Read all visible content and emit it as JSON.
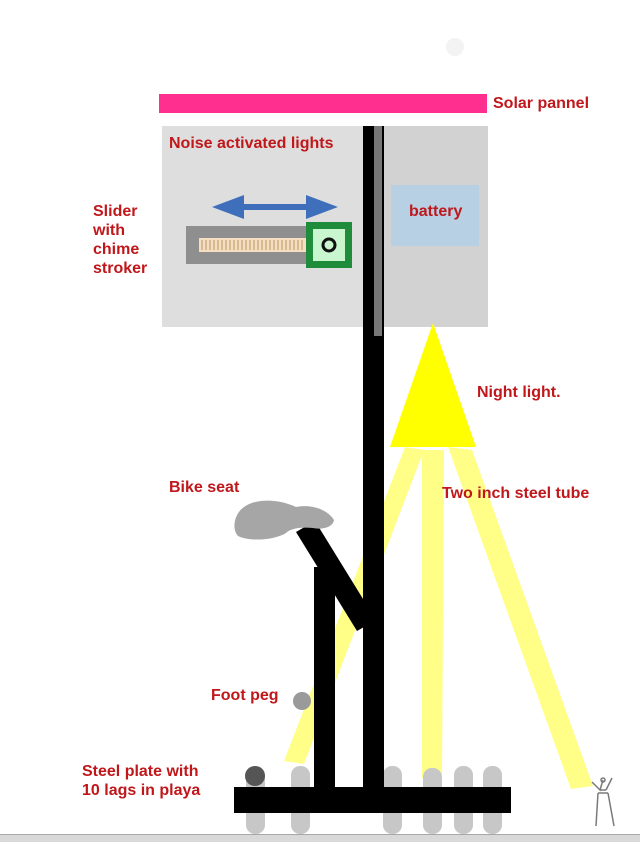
{
  "labels": {
    "solar_panel": "Solar pannel",
    "noise_lights": "Noise activated lights",
    "slider": "Slider\nwith\nchime\nstroker",
    "battery": "battery",
    "night_light": "Night light.",
    "bike_seat": "Bike seat",
    "steel_tube": "Two inch steel tube",
    "foot_peg": "Foot peg",
    "steel_plate": "Steel plate with\n10 lags in playa"
  },
  "colors": {
    "label_text": "#c0171b",
    "solar_panel": "#ff2f8f",
    "enclosure": "#dedede",
    "battery": "#b7d0e3",
    "arrow": "#3f6fba",
    "light_cone": "#ffff00",
    "light_beam": "#ffff73",
    "steel": "#000000",
    "seat": "#a6a6a6",
    "button_frame": "#1e8c3a",
    "button_face": "#c9f5cf"
  },
  "icons": [
    "double-arrow-icon",
    "button-circle-icon",
    "human-figure-icon"
  ]
}
